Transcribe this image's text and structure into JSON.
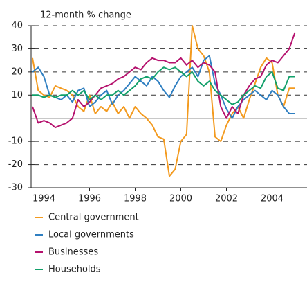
{
  "chart_data": {
    "type": "line",
    "y_label": "12-month % change",
    "x": [
      1993.5,
      1993.75,
      1994,
      1994.25,
      1994.5,
      1994.75,
      1995,
      1995.25,
      1995.5,
      1995.75,
      1996,
      1996.25,
      1996.5,
      1996.75,
      1997,
      1997.25,
      1997.5,
      1997.75,
      1998,
      1998.25,
      1998.5,
      1998.75,
      1999,
      1999.25,
      1999.5,
      1999.75,
      2000,
      2000.25,
      2000.5,
      2000.75,
      2001,
      2001.25,
      2001.5,
      2001.75,
      2002,
      2002.25,
      2002.5,
      2002.75,
      2003,
      2003.25,
      2003.5,
      2003.75,
      2004,
      2004.25,
      2004.5,
      2004.75,
      2005
    ],
    "series": [
      {
        "name": "Central government",
        "color": "#f39a1e",
        "values": [
          26,
          12,
          10,
          9,
          14,
          13,
          12,
          10,
          5,
          3,
          10,
          2,
          5,
          3,
          7,
          2,
          5,
          0,
          5,
          2,
          0,
          -3,
          -8,
          -9,
          -25,
          -22,
          -10,
          -7,
          40,
          30,
          27,
          20,
          -8,
          -10,
          -3,
          2,
          5,
          0,
          8,
          15,
          22,
          26,
          24,
          10,
          5,
          13,
          13
        ]
      },
      {
        "name": "Local governments",
        "color": "#2f7fc1",
        "values": [
          20,
          22,
          18,
          10,
          9,
          8,
          10,
          7,
          12,
          13,
          5,
          7,
          10,
          12,
          6,
          10,
          12,
          15,
          18,
          16,
          14,
          18,
          16,
          12,
          9,
          14,
          18,
          20,
          22,
          18,
          25,
          27,
          15,
          10,
          4,
          0,
          5,
          8,
          10,
          12,
          10,
          8,
          12,
          10,
          5,
          2,
          2
        ]
      },
      {
        "name": "Businesses",
        "color": "#b5126e",
        "values": [
          5,
          -2,
          -1,
          -2,
          -4,
          -3,
          -2,
          0,
          8,
          5,
          7,
          10,
          13,
          14,
          15,
          17,
          18,
          20,
          22,
          21,
          24,
          26,
          25,
          25,
          24,
          24,
          26,
          23,
          25,
          22,
          24,
          23,
          20,
          5,
          0,
          5,
          2,
          10,
          14,
          17,
          18,
          23,
          25,
          24,
          27,
          30,
          37
        ]
      },
      {
        "name": "Households",
        "color": "#12a06a",
        "values": [
          10,
          10,
          9,
          10,
          9,
          10,
          10,
          12,
          10,
          12,
          8,
          10,
          8,
          10,
          10,
          12,
          10,
          12,
          14,
          17,
          18,
          17,
          20,
          22,
          21,
          22,
          20,
          18,
          20,
          16,
          14,
          16,
          12,
          10,
          8,
          6,
          7,
          10,
          12,
          14,
          13,
          18,
          20,
          13,
          12,
          18,
          18
        ]
      }
    ],
    "xlim": [
      1993.5,
      2005.5
    ],
    "xticks": [
      1994,
      1996,
      1998,
      2000,
      2002,
      2004
    ],
    "ylim": [
      -30,
      40
    ],
    "yticks": [
      -30,
      -20,
      -10,
      10,
      20,
      30,
      40
    ],
    "grid": true,
    "zero_line": true,
    "legend": "bottom"
  }
}
